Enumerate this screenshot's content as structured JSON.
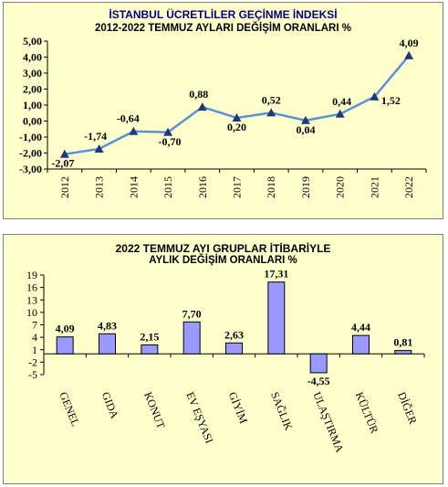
{
  "chart_data": [
    {
      "type": "line",
      "title_line1": "İSTANBUL ÜCRETLİLER GEÇİNME İNDEKSİ",
      "title_line2": "2012-2022 TEMMUZ AYLARI DEĞİŞİM ORANLARI %",
      "categories": [
        "2012",
        "2013",
        "2014",
        "2015",
        "2016",
        "2017",
        "2018",
        "2019",
        "2020",
        "2021",
        "2022"
      ],
      "values": [
        -2.07,
        -1.74,
        -0.64,
        -0.7,
        0.88,
        0.2,
        0.52,
        0.04,
        0.44,
        1.52,
        4.09
      ],
      "value_labels": [
        "-2,07",
        "-1,74",
        "-0,64",
        "-0,70",
        "0,88",
        "0,20",
        "0,52",
        "0,04",
        "0,44",
        "1,52",
        "4,09"
      ],
      "ylim": [
        -3,
        5
      ],
      "yticks": [
        "5,00",
        "4,00",
        "3,00",
        "2,00",
        "1,00",
        "0,00",
        "-1,00",
        "-2,00",
        "-3,00"
      ],
      "ytick_values": [
        5,
        4,
        3,
        2,
        1,
        0,
        -1,
        -2,
        -3
      ],
      "line_color": "#5b8fd6",
      "marker_color": "#1f3a7a",
      "grid": false
    },
    {
      "type": "bar",
      "title_line1": "2022 TEMMUZ  AYI  GRUPLAR İTİBARİYLE",
      "title_line2": "AYLIK DEĞİŞİM  ORANLARI  %",
      "categories": [
        "GENEL",
        "GIDA",
        "KONUT",
        "EV EŞYASI",
        "GİYİM",
        "SAĞLIK",
        "ULAŞTIRMA",
        "KÜLTÜR",
        "DİĞER"
      ],
      "values": [
        4.09,
        4.83,
        2.15,
        7.7,
        2.63,
        17.31,
        -4.55,
        4.44,
        0.81
      ],
      "value_labels": [
        "4,09",
        "4,83",
        "2,15",
        "7,70",
        "2,63",
        "17,31",
        "-4,55",
        "4,44",
        "0,81"
      ],
      "ylim": [
        -5,
        19
      ],
      "yticks": [
        "19",
        "16",
        "13",
        "10",
        "7",
        "4",
        "1",
        "-2",
        "-5"
      ],
      "ytick_values": [
        19,
        16,
        13,
        10,
        7,
        4,
        1,
        -2,
        -5
      ],
      "bar_color": "#9999ff",
      "grid": false
    }
  ]
}
